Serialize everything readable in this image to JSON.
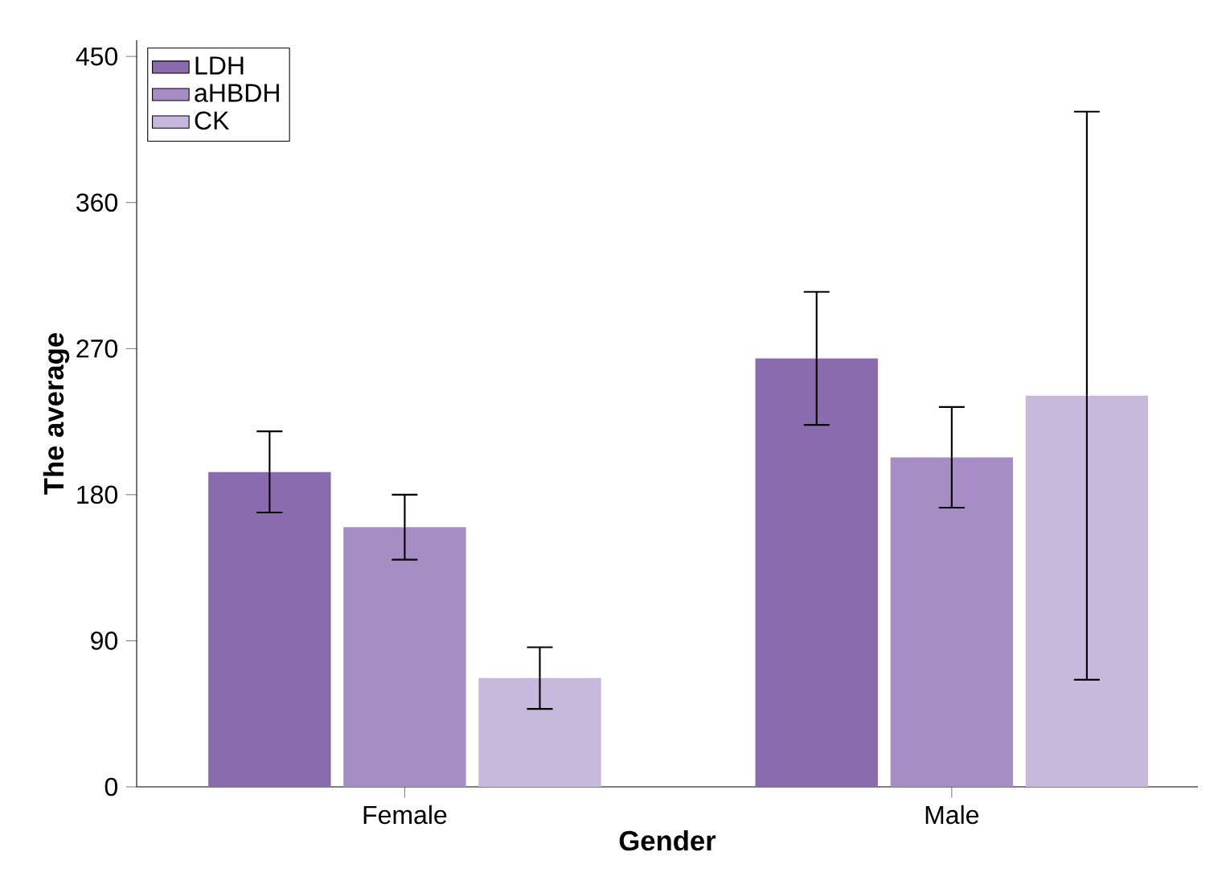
{
  "chart_data": {
    "type": "bar",
    "xlabel": "Gender",
    "ylabel": "The average",
    "categories": [
      "Female",
      "Male"
    ],
    "series": [
      {
        "name": "LDH",
        "color": "#8a6cae",
        "values": [
          194,
          264
        ],
        "errors": [
          25,
          41
        ]
      },
      {
        "name": "aHBDH",
        "color": "#a68ec5",
        "values": [
          160,
          203
        ],
        "errors": [
          20,
          31
        ]
      },
      {
        "name": "CK",
        "color": "#c6b9dc",
        "values": [
          67,
          241
        ],
        "errors": [
          19,
          175
        ]
      }
    ],
    "ylim": [
      0,
      460
    ],
    "yticks": [
      0,
      90,
      180,
      270,
      360,
      450
    ],
    "grid": false,
    "legend": "top left"
  }
}
